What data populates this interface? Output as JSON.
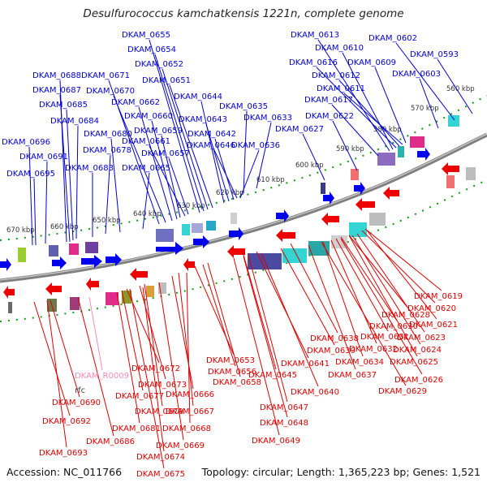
{
  "title": "Desulfurococcus kamchatkensis 1221n, complete genome",
  "footer": {
    "accession": "Accession: NC_011766",
    "topology": "Topology: circular; Length: 1,365,223 bp; Genes: 1,521"
  },
  "colors": {
    "forward": "#0000d0",
    "reverse": "#dd0000",
    "rna": "#ff88bb",
    "backbone": "#8a8a8a",
    "ticks": "#119911"
  },
  "scale_labels": [
    "560 kbp",
    "570 kbp",
    "580 kbp",
    "590 kbp",
    "600 kbp",
    "610 kbp",
    "620 kbp",
    "630 kbp",
    "640 kbp",
    "650 kbp",
    "660 kbp",
    "670 kbp"
  ],
  "forward_genes": [
    "DKAM_0655",
    "DKAM_0654",
    "DKAM_0652",
    "DKAM_0651",
    "DKAM_0644",
    "DKAM_0643",
    "DKAM_0642",
    "DKAM_0646",
    "DKAM_0635",
    "DKAM_0633",
    "DKAM_0636",
    "DKAM_0627",
    "DKAM_0622",
    "DKAM_0617",
    "DKAM_0613",
    "DKAM_0610",
    "DKAM_0616",
    "DKAM_0612",
    "DKAM_0611",
    "DKAM_0609",
    "DKAM_0602",
    "DKAM_0593",
    "DKAM_0603",
    "DKAM_0688",
    "DKAM_0687",
    "DKAM_0685",
    "DKAM_0684",
    "DKAM_0696",
    "DKAM_0691",
    "DKAM_0695",
    "DKAM_0671",
    "DKAM_0670",
    "DKAM_0662",
    "DKAM_0660",
    "DKAM_0659",
    "DKAM_0661",
    "DKAM_0657",
    "DKAM_0665",
    "DKAM_0680",
    "DKAM_0678",
    "DKAM_0683"
  ],
  "reverse_genes": [
    "DKAM_0619",
    "DKAM_0620",
    "DKAM_0628",
    "DKAM_0621",
    "DKAM_0630",
    "DKAM_0623",
    "DKAM_0638",
    "DKAM_0631",
    "DKAM_0632",
    "DKAM_0624",
    "DKAM_0639",
    "DKAM_0634",
    "DKAM_0625",
    "DKAM_0653",
    "DKAM_0641",
    "DKAM_0637",
    "DKAM_0656",
    "DKAM_0645",
    "DKAM_0626",
    "DKAM_0658",
    "DKAM_0629",
    "DKAM_0640",
    "DKAM_0672",
    "DKAM_0673",
    "DKAM_0666",
    "DKAM_0677",
    "DKAM_0647",
    "DKAM_0679",
    "DKAM_0667",
    "DKAM_0648",
    "DKAM_0668",
    "DKAM_0681",
    "DKAM_0686",
    "DKAM_0669",
    "DKAM_0674",
    "DKAM_0675",
    "DKAM_0690",
    "DKAM_0692",
    "DKAM_0693",
    "DKAM_0649"
  ],
  "rna_genes": [
    "DKAM_R0009"
  ],
  "rna_extra_label": "rfc"
}
